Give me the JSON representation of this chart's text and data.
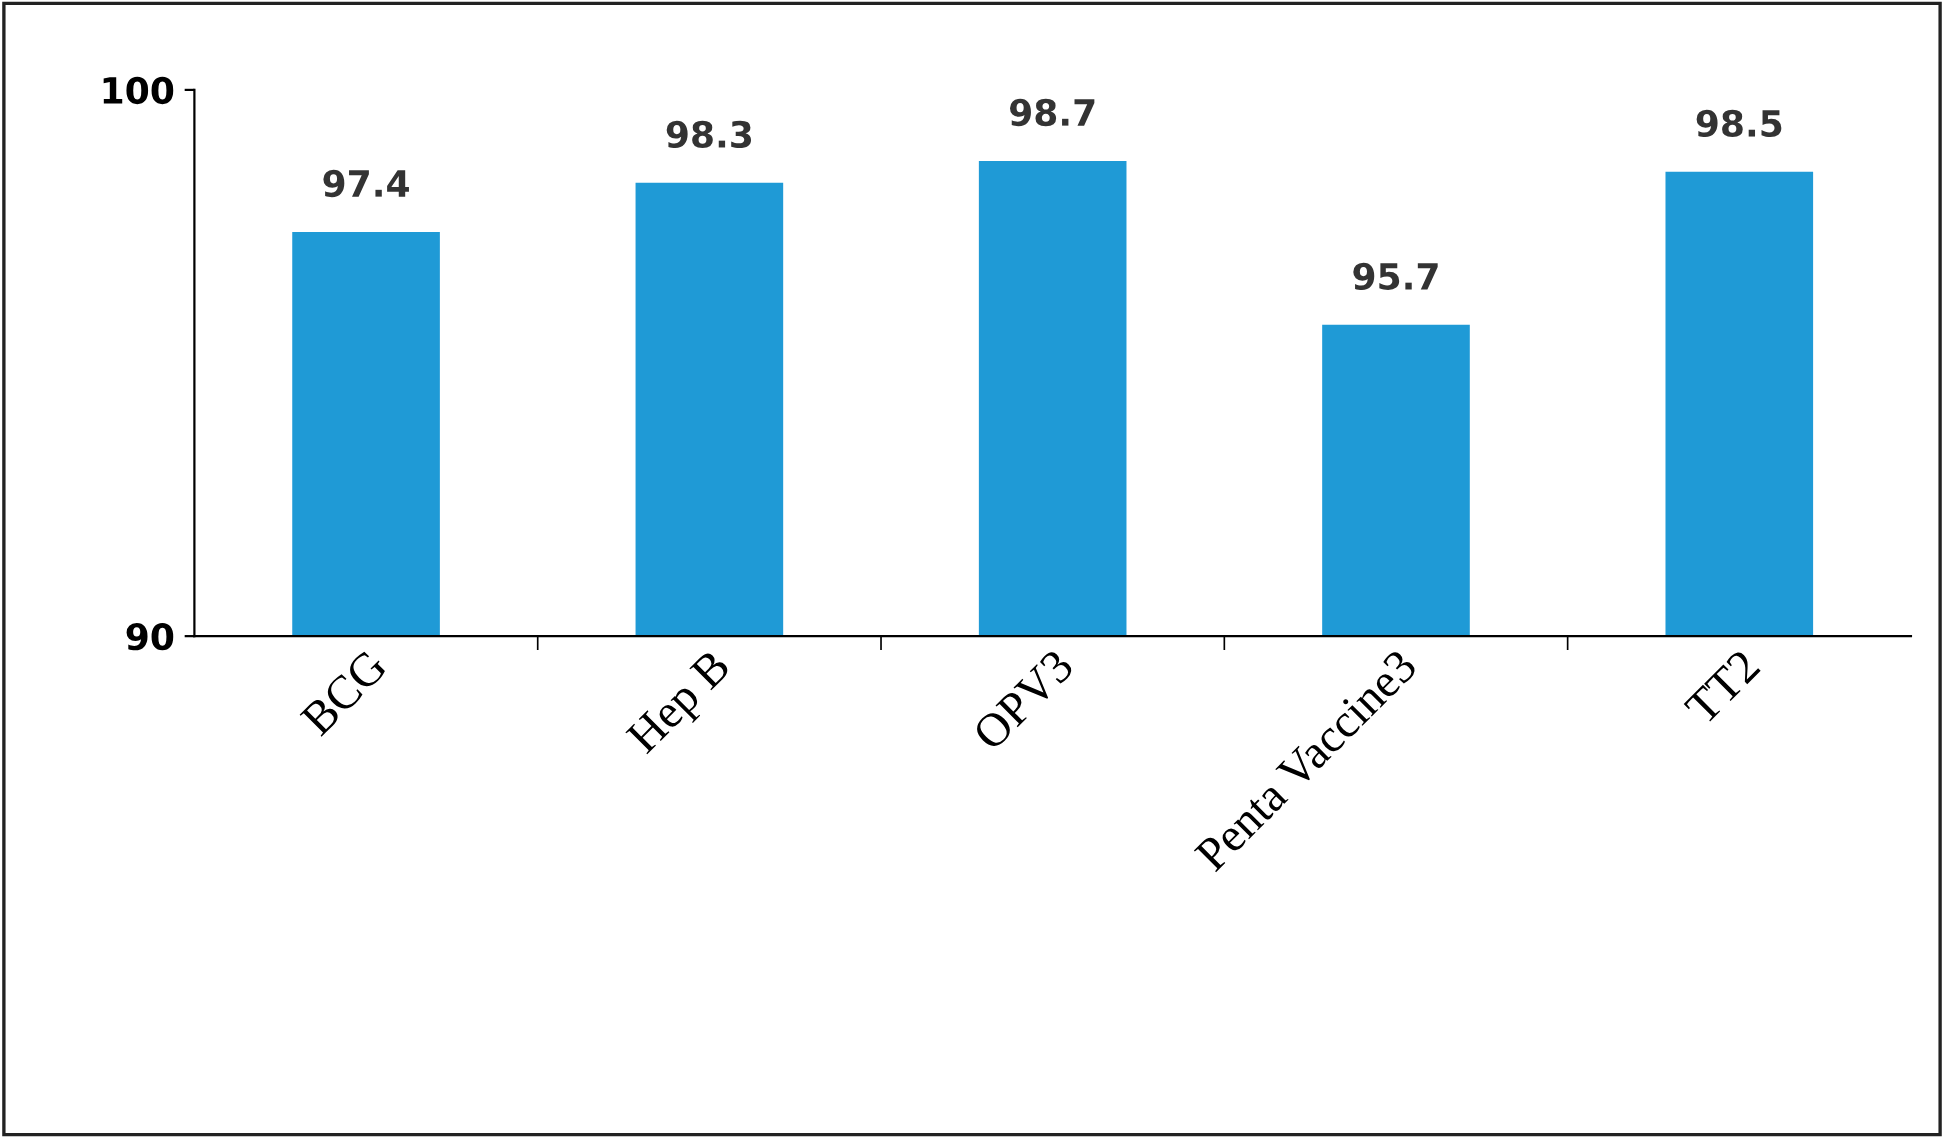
{
  "chart_data": {
    "type": "bar",
    "categories": [
      "BCG",
      "Hep B",
      "OPV3",
      "Penta Vaccine3",
      "TT2"
    ],
    "values": [
      97.4,
      98.3,
      98.7,
      95.7,
      98.5
    ],
    "color": "#1f9ad6",
    "ylim": [
      90,
      100
    ],
    "yticks": [
      90,
      100
    ],
    "data_labels": true,
    "grid": false,
    "legend": false
  }
}
